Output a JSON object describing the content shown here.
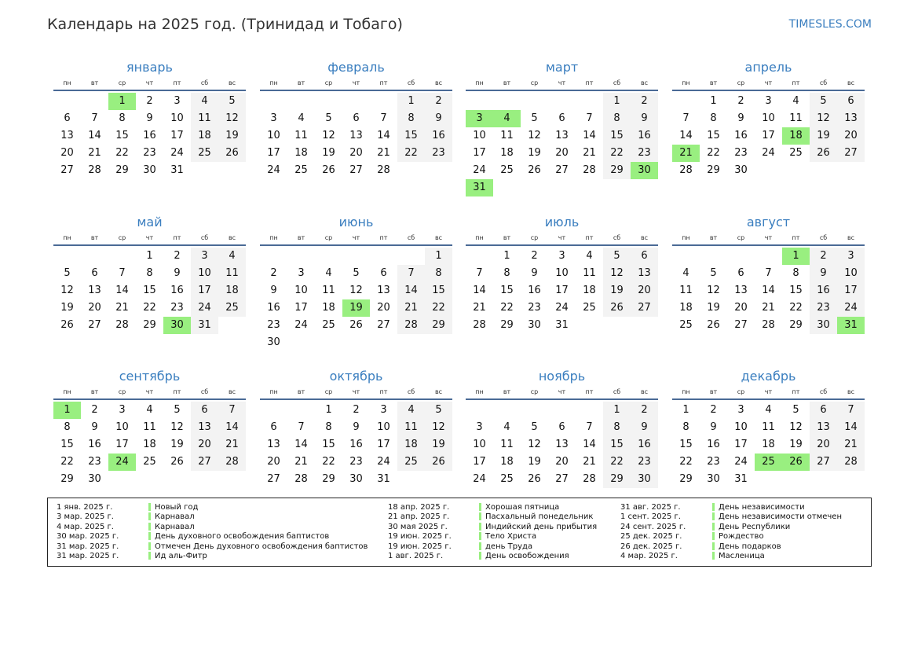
{
  "header": {
    "title": "Календарь на 2025 год. (Тринидад и Тобаго)",
    "brand": "TIMESLES.COM"
  },
  "colors": {
    "accent": "#3a7ebf",
    "holiday": "#99ef80",
    "weekend": "#f3f3f3"
  },
  "weekdays": [
    "пн",
    "вт",
    "ср",
    "чт",
    "пт",
    "сб",
    "вс"
  ],
  "months": [
    {
      "name": "январь",
      "first_weekday_offset": 2,
      "days": 31,
      "holidays": [
        1
      ]
    },
    {
      "name": "февраль",
      "first_weekday_offset": 5,
      "days": 28,
      "holidays": []
    },
    {
      "name": "март",
      "first_weekday_offset": 5,
      "days": 31,
      "holidays": [
        3,
        4,
        30,
        31
      ]
    },
    {
      "name": "апрель",
      "first_weekday_offset": 1,
      "days": 30,
      "holidays": [
        18,
        21
      ]
    },
    {
      "name": "май",
      "first_weekday_offset": 3,
      "days": 31,
      "holidays": [
        30
      ]
    },
    {
      "name": "июнь",
      "first_weekday_offset": 6,
      "days": 30,
      "holidays": [
        19
      ]
    },
    {
      "name": "июль",
      "first_weekday_offset": 1,
      "days": 31,
      "holidays": []
    },
    {
      "name": "август",
      "first_weekday_offset": 4,
      "days": 31,
      "holidays": [
        1,
        31
      ]
    },
    {
      "name": "сентябрь",
      "first_weekday_offset": 0,
      "days": 30,
      "holidays": [
        1,
        24
      ]
    },
    {
      "name": "октябрь",
      "first_weekday_offset": 2,
      "days": 31,
      "holidays": []
    },
    {
      "name": "ноябрь",
      "first_weekday_offset": 5,
      "days": 30,
      "holidays": []
    },
    {
      "name": "декабрь",
      "first_weekday_offset": 0,
      "days": 31,
      "holidays": [
        25,
        26
      ]
    }
  ],
  "legend": [
    [
      {
        "date": "1 янв. 2025 г.",
        "name": "Новый год"
      },
      {
        "date": "3 мар. 2025 г.",
        "name": "Карнавал"
      },
      {
        "date": "4 мар. 2025 г.",
        "name": "Карнавал"
      },
      {
        "date": "30 мар. 2025 г.",
        "name": "День духовного освобождения баптистов"
      },
      {
        "date": "31 мар. 2025 г.",
        "name": "Отмечен День духовного освобождения баптистов"
      },
      {
        "date": "31 мар. 2025 г.",
        "name": "Ид аль-Фитр"
      }
    ],
    [
      {
        "date": "18 апр. 2025 г.",
        "name": "Хорошая пятница"
      },
      {
        "date": "21 апр. 2025 г.",
        "name": "Пасхальный понедельник"
      },
      {
        "date": "30 мая 2025 г.",
        "name": "Индийский день прибытия"
      },
      {
        "date": "19 июн. 2025 г.",
        "name": "Тело Христа"
      },
      {
        "date": "19 июн. 2025 г.",
        "name": "день Труда"
      },
      {
        "date": "1 авг. 2025 г.",
        "name": "День освобождения"
      }
    ],
    [
      {
        "date": "31 авг. 2025 г.",
        "name": "День независимости"
      },
      {
        "date": "1 сент. 2025 г.",
        "name": "День независимости отмечен"
      },
      {
        "date": "24 сент. 2025 г.",
        "name": "День Республики"
      },
      {
        "date": "25 дек. 2025 г.",
        "name": "Рождество"
      },
      {
        "date": "26 дек. 2025 г.",
        "name": "День подарков"
      },
      {
        "date": "4 мар. 2025 г.",
        "name": "Масленица"
      }
    ]
  ]
}
